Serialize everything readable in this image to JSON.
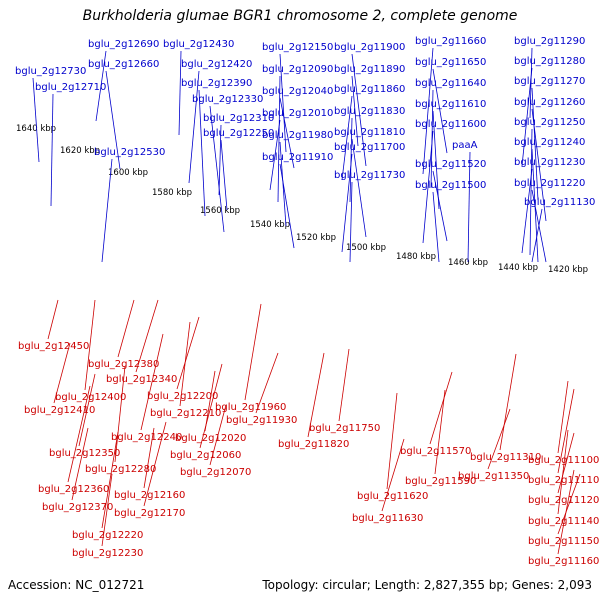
{
  "title": "Burkholderia glumae BGR1 chromosome 2, complete genome",
  "footer": {
    "accession": "Accession: NC_012721",
    "summary": "Topology: circular; Length: 2,827,355 bp; Genes: 2,093"
  },
  "colors": {
    "forward_gene": "#1010e0",
    "reverse_gene": "#ee0000",
    "forward_label": "#0000cc",
    "reverse_label": "#cc0000",
    "backbone": "#808080",
    "dotted_track": "#119911",
    "tick_text": "#000000"
  },
  "position_ticks": [
    "1640 kbp",
    "1620 kbp",
    "1600 kbp",
    "1580 kbp",
    "1560 kbp",
    "1540 kbp",
    "1520 kbp",
    "1500 kbp",
    "1480 kbp",
    "1460 kbp",
    "1440 kbp",
    "1420 kbp"
  ],
  "forward_labels": [
    "bglu_2g12690",
    "bglu_2g12430",
    "bglu_2g12150",
    "bglu_2g11900",
    "bglu_2g11660",
    "bglu_2g11290",
    "bglu_2g12730",
    "bglu_2g12660",
    "bglu_2g12420",
    "bglu_2g12090",
    "bglu_2g11890",
    "bglu_2g11650",
    "bglu_2g11280",
    "bglu_2g12710",
    "bglu_2g12390",
    "bglu_2g12040",
    "bglu_2g11860",
    "bglu_2g11640",
    "bglu_2g11270",
    "bglu_2g12330",
    "bglu_2g12010",
    "bglu_2g11830",
    "bglu_2g11610",
    "bglu_2g11260",
    "bglu_2g12530",
    "bglu_2g12310",
    "bglu_2g11980",
    "bglu_2g11810",
    "bglu_2g11600",
    "bglu_2g11250",
    "bglu_2g12250",
    "bglu_2g11910",
    "bglu_2g11700",
    "paaA",
    "bglu_2g11240",
    "bglu_2g11520",
    "bglu_2g11230",
    "bglu_2g11730",
    "bglu_2g11500",
    "bglu_2g11220",
    "bglu_2g11130"
  ],
  "reverse_labels": [
    "bglu_2g12450",
    "bglu_2g12380",
    "bglu_2g12340",
    "bglu_2g12400",
    "bglu_2g12410",
    "bglu_2g12200",
    "bglu_2g12210",
    "bglu_2g11960",
    "bglu_2g11930",
    "bglu_2g11750",
    "bglu_2g11820",
    "bglu_2g12240",
    "bglu_2g12020",
    "bglu_2g12350",
    "bglu_2g12060",
    "bglu_2g12280",
    "bglu_2g12070",
    "bglu_2g11570",
    "bglu_2g11590",
    "bglu_2g11310",
    "bglu_2g11350",
    "bglu_2g11100",
    "bglu_2g11110",
    "bglu_2g12360",
    "bglu_2g12160",
    "bglu_2g12370",
    "bglu_2g12170",
    "bglu_2g11620",
    "bglu_2g11120",
    "bglu_2g11630",
    "bglu_2g11140",
    "bglu_2g12220",
    "bglu_2g11150",
    "bglu_2g12230",
    "bglu_2g11160"
  ]
}
